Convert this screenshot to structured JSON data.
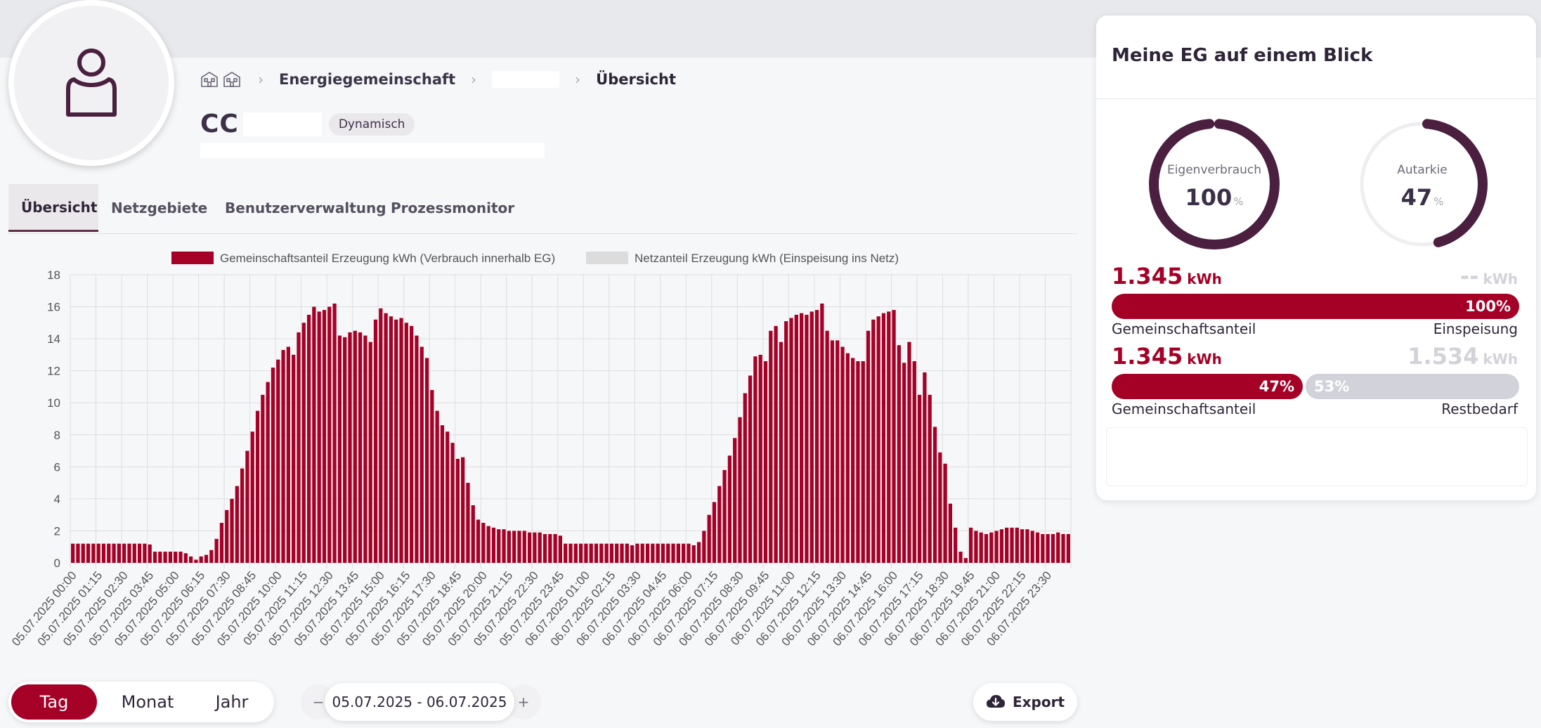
{
  "breadcrumb": {
    "level1": "Energiegemeinschaft",
    "current": "Übersicht"
  },
  "header": {
    "title": "CC",
    "badge": "Dynamisch"
  },
  "tabs": [
    {
      "label": "Übersicht",
      "active": true
    },
    {
      "label": "Netzgebiete",
      "active": false
    },
    {
      "label": "Benutzerverwaltung",
      "active": false
    },
    {
      "label": "Prozessmonitor",
      "active": false
    }
  ],
  "chart_data": {
    "type": "bar",
    "legend": [
      {
        "name": "Gemeinschaftsanteil Erzeugung kWh (Verbrauch innerhalb EG)",
        "color": "#a50026"
      },
      {
        "name": "Netzanteil Erzeugung kWh (Einspeisung ins Netz)",
        "color": "#dcdcdc"
      }
    ],
    "legend_position": "top",
    "ylim": [
      0,
      18
    ],
    "y_ticks": [
      0,
      2,
      4,
      6,
      8,
      10,
      12,
      14,
      16,
      18
    ],
    "grid": true,
    "interval": "15 min",
    "x_tick_labels": [
      "05.07.2025 00:00",
      "05.07.2025 01:15",
      "05.07.2025 02:30",
      "05.07.2025 03:45",
      "05.07.2025 05:00",
      "05.07.2025 06:15",
      "05.07.2025 07:30",
      "05.07.2025 08:45",
      "05.07.2025 10:00",
      "05.07.2025 11:15",
      "05.07.2025 12:30",
      "05.07.2025 13:45",
      "05.07.2025 15:00",
      "05.07.2025 16:15",
      "05.07.2025 17:30",
      "05.07.2025 18:45",
      "05.07.2025 20:00",
      "05.07.2025 21:15",
      "05.07.2025 22:30",
      "05.07.2025 23:45",
      "06.07.2025 01:00",
      "06.07.2025 02:15",
      "06.07.2025 03:30",
      "06.07.2025 04:45",
      "06.07.2025 06:00",
      "06.07.2025 07:15",
      "06.07.2025 08:30",
      "06.07.2025 09:45",
      "06.07.2025 11:00",
      "06.07.2025 12:15",
      "06.07.2025 13:30",
      "06.07.2025 14:45",
      "06.07.2025 16:00",
      "06.07.2025 17:15",
      "06.07.2025 18:30",
      "06.07.2025 19:45",
      "06.07.2025 21:00",
      "06.07.2025 22:15",
      "06.07.2025 23:30"
    ],
    "series": [
      {
        "name": "Gemeinschaftsanteil Erzeugung kWh (Verbrauch innerhalb EG)",
        "values": [
          1.2,
          1.2,
          1.2,
          1.2,
          1.2,
          1.2,
          1.2,
          1.2,
          1.2,
          1.2,
          1.2,
          1.2,
          1.2,
          1.2,
          1.2,
          1.15,
          0.7,
          0.7,
          0.7,
          0.7,
          0.7,
          0.7,
          0.6,
          0.4,
          0.2,
          0.4,
          0.5,
          0.8,
          1.5,
          2.5,
          3.3,
          4.0,
          4.8,
          5.9,
          7.0,
          8.2,
          9.5,
          10.5,
          11.3,
          12.2,
          12.7,
          13.3,
          13.5,
          13.0,
          14.4,
          15.0,
          15.5,
          16.0,
          15.7,
          15.8,
          16.0,
          16.2,
          14.2,
          14.1,
          14.4,
          14.5,
          14.4,
          14.2,
          13.8,
          15.2,
          15.9,
          15.6,
          15.4,
          15.2,
          15.3,
          15.0,
          14.8,
          14.2,
          13.5,
          12.8,
          10.8,
          9.5,
          8.6,
          8.2,
          7.5,
          6.5,
          6.6,
          5.0,
          3.6,
          2.7,
          2.5,
          2.3,
          2.2,
          2.1,
          2.1,
          2.0,
          2.0,
          2.0,
          2.0,
          1.9,
          1.9,
          1.9,
          1.8,
          1.8,
          1.8,
          1.7,
          1.2,
          1.2,
          1.2,
          1.2,
          1.2,
          1.2,
          1.2,
          1.2,
          1.2,
          1.2,
          1.2,
          1.2,
          1.2,
          1.1,
          1.2,
          1.2,
          1.2,
          1.2,
          1.2,
          1.2,
          1.2,
          1.2,
          1.2,
          1.2,
          1.2,
          1.1,
          1.3,
          2.0,
          3.0,
          3.8,
          4.8,
          5.8,
          6.7,
          7.8,
          9.1,
          10.6,
          11.7,
          12.9,
          13.0,
          12.6,
          14.5,
          14.8,
          13.8,
          15.1,
          15.3,
          15.5,
          15.6,
          15.5,
          15.7,
          15.8,
          16.2,
          14.5,
          13.9,
          13.9,
          13.5,
          13.1,
          12.8,
          12.6,
          12.6,
          14.5,
          15.2,
          15.4,
          15.6,
          15.7,
          15.8,
          13.6,
          12.5,
          13.8,
          12.6,
          10.5,
          11.9,
          10.5,
          8.5,
          6.9,
          6.2,
          3.7,
          2.2,
          0.7,
          0.3,
          2.2,
          2.0,
          1.9,
          1.8,
          1.9,
          2.0,
          2.1,
          2.2,
          2.2,
          2.2,
          2.1,
          2.1,
          2.0,
          1.9,
          1.8,
          1.8,
          1.8,
          1.9,
          1.8,
          1.8
        ]
      },
      {
        "name": "Netzanteil Erzeugung kWh (Einspeisung ins Netz)",
        "values": []
      }
    ]
  },
  "controls": {
    "range_options": [
      {
        "label": "Tag",
        "active": true
      },
      {
        "label": "Monat",
        "active": false
      },
      {
        "label": "Jahr",
        "active": false
      }
    ],
    "date_range": "05.07.2025 - 06.07.2025",
    "prev_label": "−",
    "next_label": "+",
    "export_label": "Export"
  },
  "panel": {
    "title": "Meine EG auf einem Blick",
    "gauges": [
      {
        "label": "Eigenverbrauch",
        "value": "100",
        "unit": "%",
        "fraction": 1.0
      },
      {
        "label": "Autarkie",
        "value": "47",
        "unit": "%",
        "fraction": 0.47
      }
    ],
    "row1": {
      "left_value": "1.345",
      "left_unit": "kWh",
      "right_value": "--",
      "right_unit": "kWh",
      "bar_label": "100%",
      "cap_left": "Gemeinschaftsanteil",
      "cap_right": "Einspeisung"
    },
    "row2": {
      "left_value": "1.345",
      "left_unit": "kWh",
      "right_value": "1.534",
      "right_unit": "kWh",
      "bar_a_label": "47%",
      "bar_b_label": "53%",
      "cap_left": "Gemeinschaftsanteil",
      "cap_right": "Restbedarf"
    },
    "colors": {
      "accent": "#a50026",
      "dark": "#4a1f3f",
      "muted": "#d2d3da"
    }
  }
}
